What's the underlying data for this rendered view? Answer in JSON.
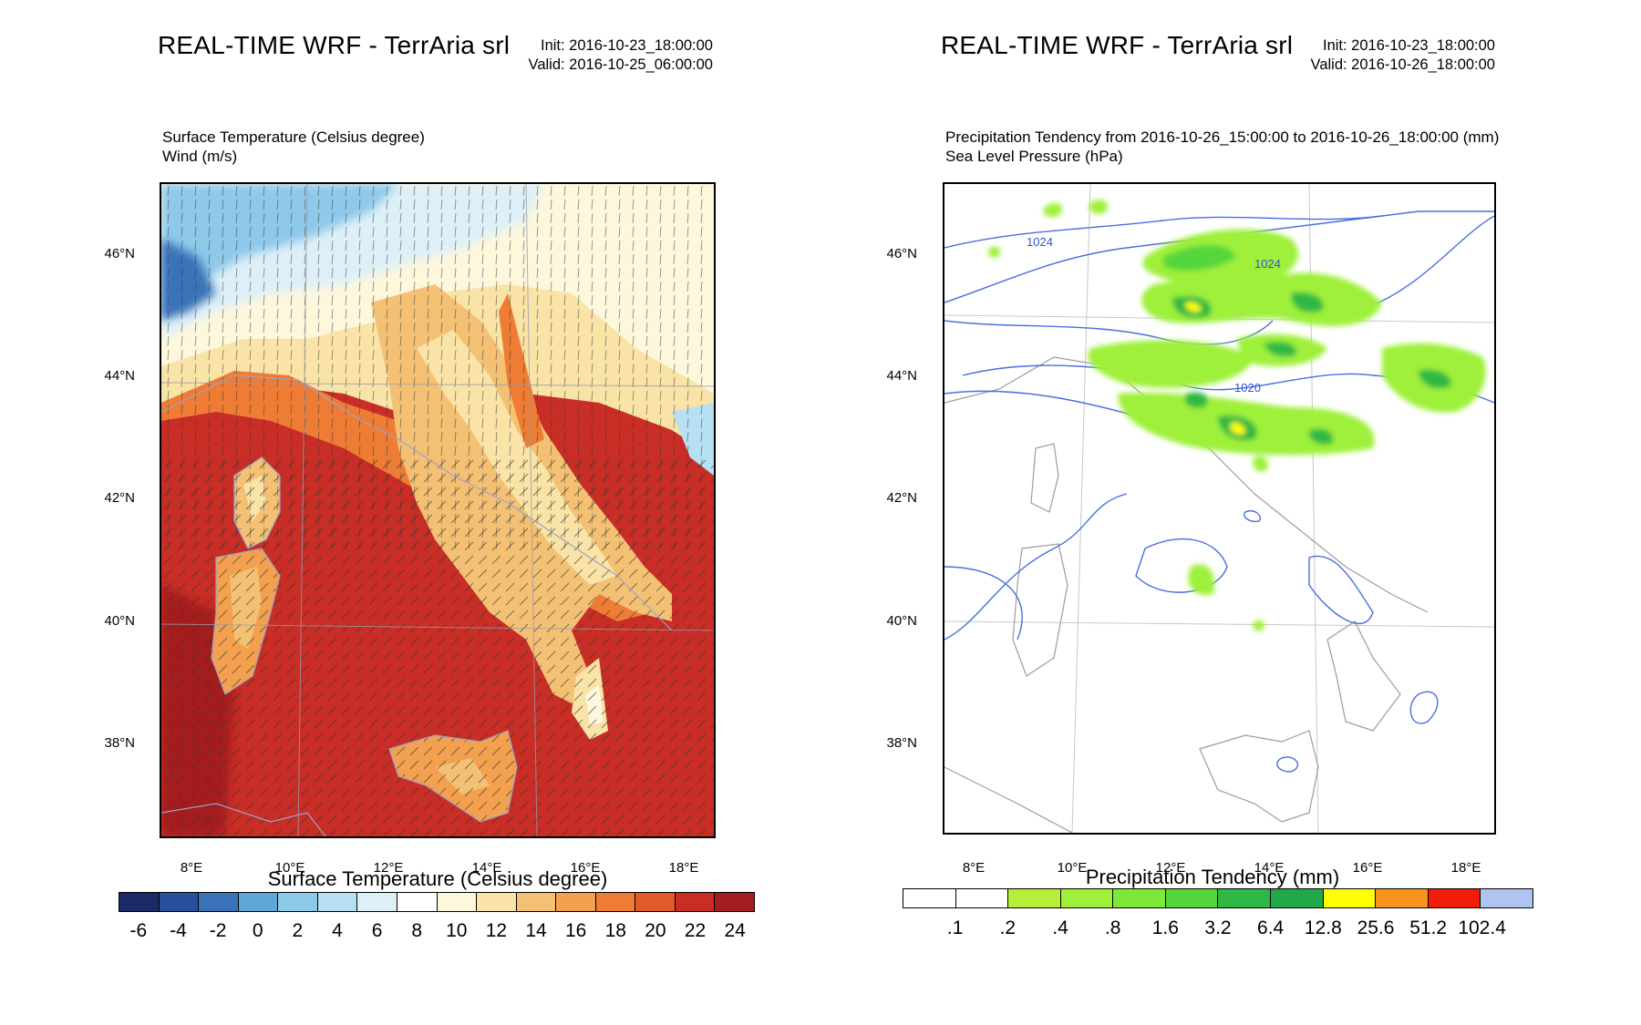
{
  "panels": [
    {
      "title": "REAL-TIME WRF - TerrAria srl",
      "init": "Init: 2016-10-23_18:00:00",
      "valid": "Valid: 2016-10-25_06:00:00",
      "sub1": "Surface Temperature   (Celsius degree)",
      "sub2": "Wind   (m/s)",
      "lat_labels": [
        "46°N",
        "44°N",
        "42°N",
        "40°N",
        "38°N"
      ],
      "lon_labels": [
        "8°E",
        "10°E",
        "12°E",
        "14°E",
        "16°E",
        "18°E"
      ],
      "colorbar_title": "Surface Temperature  (Celsius degree)",
      "colorbar_labels": [
        "-6",
        "-4",
        "-2",
        "0",
        "2",
        "4",
        "6",
        "8",
        "10",
        "12",
        "14",
        "16",
        "18",
        "20",
        "22",
        "24"
      ],
      "colorbar_colors": [
        "#1b2a66",
        "#27509a",
        "#3a73b8",
        "#5ea8d8",
        "#8ec9ea",
        "#b7e1f3",
        "#ddf0f8",
        "#ffffff",
        "#fdf7dc",
        "#f9e3a6",
        "#f4c174",
        "#f3a04f",
        "#ee7c34",
        "#e15a2a",
        "#c92e26",
        "#a41d1f"
      ]
    },
    {
      "title": "REAL-TIME WRF - TerrAria srl",
      "init": "Init: 2016-10-23_18:00:00",
      "valid": "Valid: 2016-10-26_18:00:00",
      "sub1": "Precipitation Tendency from 2016-10-26_15:00:00 to 2016-10-26_18:00:00    (mm)",
      "sub2": "Sea Level Pressure   (hPa)",
      "lat_labels": [
        "46°N",
        "44°N",
        "42°N",
        "40°N",
        "38°N"
      ],
      "lon_labels": [
        "8°E",
        "10°E",
        "12°E",
        "14°E",
        "16°E",
        "18°E"
      ],
      "contour_labels": [
        "1024",
        "1024",
        "1020"
      ],
      "colorbar_title": "Precipitation Tendency  (mm)",
      "colorbar_labels": [
        ".1",
        ".2",
        ".4",
        ".8",
        "1.6",
        "3.2",
        "6.4",
        "12.8",
        "25.6",
        "51.2",
        "102.4"
      ],
      "colorbar_colors": [
        "#ffffff",
        "#ffffff",
        "#b5ef3a",
        "#9ef03a",
        "#7ee83a",
        "#55d63c",
        "#2fb845",
        "#22a848",
        "#ffff00",
        "#f7941d",
        "#f21c0a",
        "#b0c4f2"
      ]
    }
  ]
}
